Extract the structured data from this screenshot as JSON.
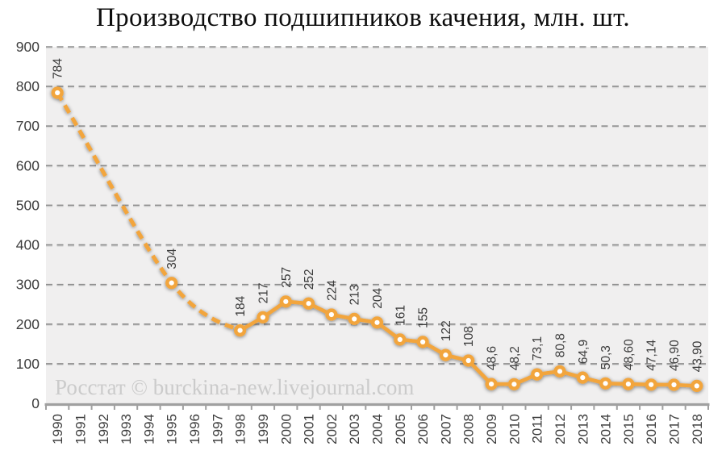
{
  "title": "Производство подшипников качения, млн. шт.",
  "watermark": "Росстат © burckina-new.livejournal.com",
  "colors": {
    "line": "#F2A53D",
    "marker_fill": "#F2A53D",
    "marker_center": "#FFFFFF",
    "plot_background": "#F0EFEF",
    "gridline": "#8D8D8D",
    "gridline_shadow": "#D6D6D6",
    "axis": "#A0A0A0",
    "tick_label": "#3D3D3D",
    "data_label": "#3C3C3C",
    "watermark_color": "#CBCBCB",
    "title_color": "#0D0D0D"
  },
  "chart_data": {
    "type": "line",
    "title": "Производство подшипников качения, млн. шт.",
    "categories": [
      "1990",
      "1991",
      "1992",
      "1993",
      "1994",
      "1995",
      "1996",
      "1997",
      "1998",
      "1999",
      "2000",
      "2001",
      "2002",
      "2003",
      "2004",
      "2005",
      "2006",
      "2007",
      "2008",
      "2009",
      "2010",
      "2011",
      "2012",
      "2013",
      "2014",
      "2015",
      "2016",
      "2017",
      "2018"
    ],
    "series": [
      {
        "name": "Производство подшипников качения, млн. шт.",
        "values": [
          784,
          null,
          null,
          null,
          null,
          304,
          null,
          null,
          184,
          217,
          257,
          252,
          224,
          213,
          204,
          161,
          155,
          122,
          108,
          48.6,
          48.2,
          73.1,
          80.8,
          64.9,
          50.3,
          48.6,
          47.14,
          46.9,
          43.9
        ],
        "point_labels": [
          "784",
          null,
          null,
          null,
          null,
          "304",
          null,
          null,
          "184",
          "217",
          "257",
          "252",
          "224",
          "213",
          "204",
          "161",
          "155",
          "122",
          "108",
          "48,6",
          "48,2",
          "73,1",
          "80,8",
          "64,9",
          "50,3",
          "48,60",
          "47,14",
          "46,90",
          "43,90"
        ]
      }
    ],
    "ylim": [
      0,
      900
    ],
    "ytick_step": 100,
    "grid": "horizontal-dashed",
    "legend": "none",
    "line_style": {
      "dashed_through_years": [
        "1990",
        "1995",
        "1998"
      ],
      "solid_from_year": "1998"
    }
  }
}
